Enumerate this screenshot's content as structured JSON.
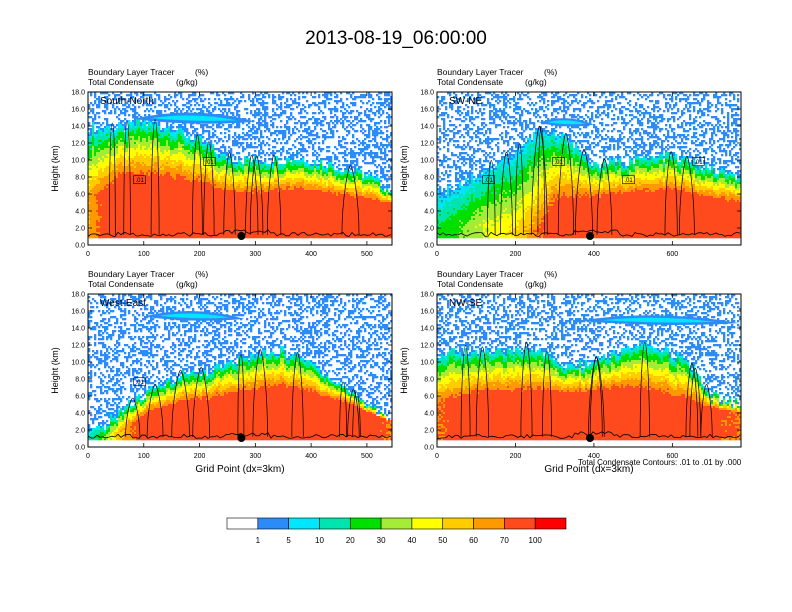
{
  "page": {
    "title": "2013-08-19_06:00:00",
    "footnote": "Total Condensate Contours: .01 to .01 by .000"
  },
  "chart_data": [
    {
      "type": "heatmap",
      "panel_label": "South-North",
      "header_left_1": "Boundary Layer Tracer",
      "header_right_1": "(%)",
      "header_left_2": "Total Condensate",
      "header_right_2": "(g/kg)",
      "ylabel": "Height (km)",
      "xlabel": "",
      "xlim": [
        0,
        545
      ],
      "ylim": [
        0,
        18
      ],
      "xticks": [
        0,
        100,
        200,
        300,
        400,
        500
      ],
      "yticks": [
        "0.0",
        "2.0",
        "4.0",
        "6.0",
        "8.0",
        "10.0",
        "12.0",
        "14.0",
        "16.0",
        "18.0"
      ],
      "marker_x": 275,
      "contour_labels": [
        ".01",
        ".01"
      ],
      "profile": [
        [
          0,
          14,
          60,
          5.5,
          9
        ],
        [
          60,
          13.8,
          95,
          5.8,
          10
        ],
        [
          95,
          14.5,
          95,
          5.5,
          9
        ],
        [
          150,
          14,
          95,
          5.5,
          8
        ],
        [
          210,
          12,
          90,
          5.5,
          6
        ],
        [
          240,
          10.5,
          90,
          5,
          4
        ],
        [
          300,
          10,
          85,
          5.2,
          3
        ],
        [
          380,
          10.3,
          90,
          5.5,
          3
        ],
        [
          440,
          9.5,
          85,
          5.2,
          3
        ],
        [
          500,
          8.2,
          80,
          5,
          2
        ],
        [
          545,
          6.5,
          75,
          4.8,
          2
        ]
      ],
      "upper_cloud": [
        80,
        300,
        15.0,
        0.8
      ]
    },
    {
      "type": "heatmap",
      "panel_label": "SW-NE",
      "header_left_1": "Boundary Layer Tracer",
      "header_right_1": "(%)",
      "header_left_2": "Total Condensate",
      "header_right_2": "(g/kg)",
      "ylabel": "Height (km)",
      "xlabel": "",
      "xlim": [
        0,
        775
      ],
      "ylim": [
        0,
        18
      ],
      "xticks": [
        0,
        200,
        400,
        600
      ],
      "yticks": [
        "0.0",
        "2.0",
        "4.0",
        "6.0",
        "8.0",
        "10.0",
        "12.0",
        "14.0",
        "16.0",
        "18.0"
      ],
      "marker_x": 390,
      "contour_labels": [
        ".01",
        ".01",
        ".01",
        ".01"
      ],
      "profile": [
        [
          0,
          6,
          20,
          1.5,
          0
        ],
        [
          120,
          9,
          40,
          2,
          1
        ],
        [
          200,
          11,
          50,
          1.5,
          2
        ],
        [
          260,
          13.5,
          70,
          1.5,
          4
        ],
        [
          300,
          13,
          80,
          4,
          6
        ],
        [
          340,
          12.5,
          80,
          4.5,
          6
        ],
        [
          400,
          9.5,
          80,
          5,
          3
        ],
        [
          500,
          10,
          85,
          5.3,
          3
        ],
        [
          600,
          10.5,
          85,
          5.5,
          3
        ],
        [
          700,
          9,
          80,
          5,
          2
        ],
        [
          775,
          8,
          75,
          4.8,
          2
        ]
      ],
      "upper_cloud": [
        260,
        400,
        14.5,
        0.6
      ]
    },
    {
      "type": "heatmap",
      "panel_label": "West-East",
      "header_left_1": "Boundary Layer Tracer",
      "header_right_1": "(%)",
      "header_left_2": "Total Condensate",
      "header_right_2": "(g/kg)",
      "ylabel": "Height (km)",
      "xlabel": "Grid Point (dx=3km)",
      "xlim": [
        0,
        545
      ],
      "ylim": [
        0,
        18
      ],
      "xticks": [
        0,
        100,
        200,
        300,
        400,
        500
      ],
      "yticks": [
        "0.0",
        "2.0",
        "4.0",
        "6.0",
        "8.0",
        "10.0",
        "12.0",
        "14.0",
        "16.0",
        "18.0"
      ],
      "marker_x": 275,
      "contour_labels": [
        ".01"
      ],
      "profile": [
        [
          0,
          1.5,
          10,
          1,
          0
        ],
        [
          30,
          2.5,
          30,
          1.2,
          0
        ],
        [
          60,
          4.5,
          60,
          2,
          1
        ],
        [
          100,
          6,
          80,
          3.5,
          2
        ],
        [
          160,
          8.5,
          85,
          4.5,
          3
        ],
        [
          220,
          9,
          85,
          5,
          3
        ],
        [
          280,
          10.5,
          90,
          5.3,
          4
        ],
        [
          340,
          11.5,
          95,
          5.5,
          5
        ],
        [
          400,
          10,
          90,
          5.3,
          3
        ],
        [
          460,
          7,
          85,
          5,
          2
        ],
        [
          545,
          3,
          70,
          3,
          0
        ]
      ],
      "upper_cloud": [
        100,
        280,
        15.5,
        0.7
      ]
    },
    {
      "type": "heatmap",
      "panel_label": "NW-SE",
      "header_left_1": "Boundary Layer Tracer",
      "header_right_1": "(%)",
      "header_left_2": "Total Condensate",
      "header_right_2": "(g/kg)",
      "ylabel": "Height (km)",
      "xlabel": "Grid Point (dx=3km)",
      "xlim": [
        0,
        775
      ],
      "ylim": [
        0,
        18
      ],
      "xticks": [
        0,
        200,
        400,
        600
      ],
      "yticks": [
        "0.0",
        "2.0",
        "4.0",
        "6.0",
        "8.0",
        "10.0",
        "12.0",
        "14.0",
        "16.0",
        "18.0"
      ],
      "marker_x": 390,
      "contour_labels": [],
      "profile": [
        [
          0,
          11,
          70,
          5,
          3
        ],
        [
          80,
          11.5,
          80,
          5.3,
          3
        ],
        [
          160,
          11,
          85,
          5.5,
          4
        ],
        [
          240,
          12,
          85,
          5.5,
          4
        ],
        [
          320,
          9.5,
          85,
          5.5,
          3
        ],
        [
          400,
          10,
          90,
          5.5,
          3
        ],
        [
          480,
          11.5,
          90,
          5.5,
          3
        ],
        [
          560,
          12,
          85,
          5.3,
          3
        ],
        [
          640,
          10,
          80,
          5,
          2
        ],
        [
          700,
          6,
          75,
          4.5,
          1
        ],
        [
          775,
          5,
          70,
          4,
          1
        ]
      ],
      "upper_cloud": [
        360,
        770,
        15.0,
        0.7
      ]
    }
  ],
  "colorbar": {
    "colors": [
      "#ffffff",
      "#2b8cf7",
      "#00e6ff",
      "#00e5b0",
      "#00e000",
      "#a4ec37",
      "#ffff00",
      "#ffcc00",
      "#ff9900",
      "#ff4a1e",
      "#ff0000"
    ],
    "labels": [
      "1",
      "5",
      "10",
      "20",
      "30",
      "40",
      "50",
      "60",
      "70",
      "100"
    ]
  }
}
